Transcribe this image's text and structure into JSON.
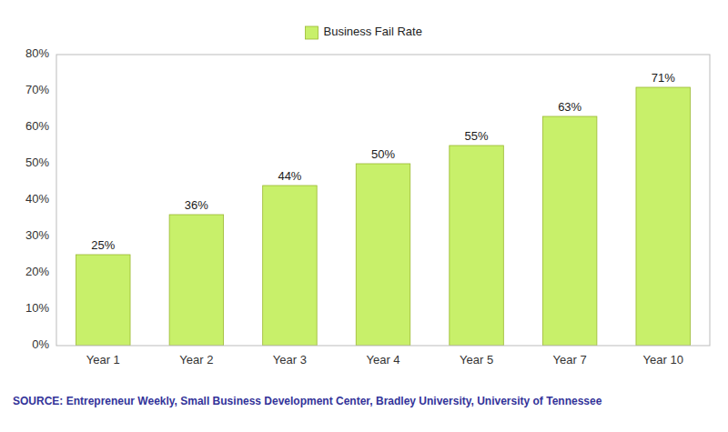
{
  "chart_data": {
    "type": "bar",
    "categories": [
      "Year 1",
      "Year 2",
      "Year 3",
      "Year 4",
      "Year 5",
      "Year 7",
      "Year 10"
    ],
    "series": [
      {
        "name": "Business Fail Rate",
        "color": "#c8f06a",
        "values": [
          25,
          36,
          44,
          50,
          55,
          63,
          71
        ],
        "value_labels": [
          "25%",
          "36%",
          "44%",
          "50%",
          "55%",
          "63%",
          "71%"
        ]
      }
    ],
    "ylim": [
      0,
      80
    ],
    "yticks": [
      {
        "value": 0,
        "label": "0%"
      },
      {
        "value": 10,
        "label": "10%"
      },
      {
        "value": 20,
        "label": "20%"
      },
      {
        "value": 30,
        "label": "30%"
      },
      {
        "value": 40,
        "label": "40%"
      },
      {
        "value": 50,
        "label": "50%"
      },
      {
        "value": 60,
        "label": "60%"
      },
      {
        "value": 70,
        "label": "70%"
      },
      {
        "value": 80,
        "label": "80%"
      }
    ],
    "grid": false,
    "legend": "top",
    "data_labels": true,
    "annotations": [
      "SOURCE: Entrepreneur Weekly, Small Business Development Center, Bradley University, University of Tennessee"
    ]
  }
}
